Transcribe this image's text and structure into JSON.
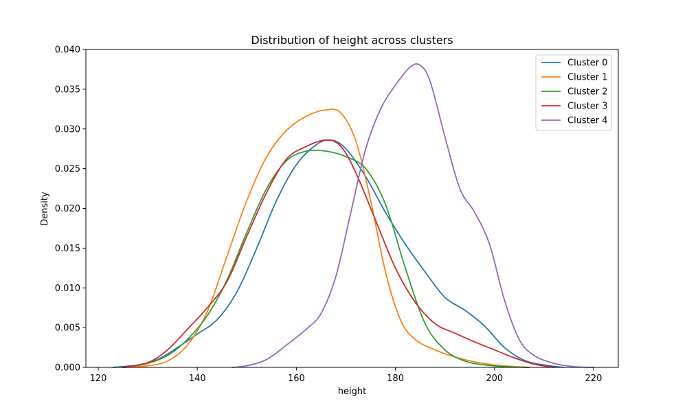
{
  "chart_data": {
    "type": "line",
    "title": "Distribution of height across clusters",
    "xlabel": "height",
    "ylabel": "Density",
    "xlim": [
      117.5,
      225
    ],
    "ylim": [
      0,
      0.04
    ],
    "xticks": [
      120,
      140,
      160,
      180,
      200,
      220
    ],
    "xtick_labels": [
      "120",
      "140",
      "160",
      "180",
      "200",
      "220"
    ],
    "yticks": [
      0,
      0.005,
      0.01,
      0.015,
      0.02,
      0.025,
      0.03,
      0.035,
      0.04
    ],
    "ytick_labels": [
      "0.000",
      "0.005",
      "0.010",
      "0.015",
      "0.020",
      "0.025",
      "0.030",
      "0.035",
      "0.040"
    ],
    "grid": false,
    "legend_position": "top-right",
    "series": [
      {
        "name": "Cluster 0",
        "color": "#1f77b4",
        "x": [
          123,
          128,
          132,
          136,
          140,
          144,
          148,
          152,
          156,
          160,
          164,
          167,
          170,
          174,
          178,
          182,
          186,
          190,
          194,
          198,
          202,
          206,
          210,
          214
        ],
        "y": [
          0.0,
          0.0003,
          0.001,
          0.0025,
          0.0042,
          0.006,
          0.0095,
          0.015,
          0.021,
          0.0255,
          0.028,
          0.0286,
          0.0275,
          0.024,
          0.0195,
          0.0155,
          0.012,
          0.0088,
          0.0072,
          0.0052,
          0.0025,
          0.0009,
          0.0003,
          0.0
        ]
      },
      {
        "name": "Cluster 1",
        "color": "#ff7f0e",
        "x": [
          125,
          130,
          134,
          138,
          142,
          146,
          150,
          154,
          158,
          162,
          166,
          169,
          172,
          175,
          178,
          181,
          184,
          188,
          192,
          196,
          200,
          204,
          207
        ],
        "y": [
          0.0,
          0.0002,
          0.0008,
          0.0028,
          0.007,
          0.014,
          0.021,
          0.0265,
          0.0298,
          0.0316,
          0.0324,
          0.032,
          0.0285,
          0.021,
          0.012,
          0.006,
          0.0035,
          0.0022,
          0.0013,
          0.0007,
          0.0003,
          0.0001,
          0.0
        ]
      },
      {
        "name": "Cluster 2",
        "color": "#2ca02c",
        "x": [
          125,
          130,
          134,
          138,
          142,
          146,
          150,
          154,
          158,
          162,
          166,
          170,
          174,
          178,
          182,
          186,
          190,
          194,
          198,
          202,
          207
        ],
        "y": [
          0.0,
          0.0005,
          0.0015,
          0.0035,
          0.0065,
          0.011,
          0.017,
          0.0225,
          0.026,
          0.0272,
          0.0272,
          0.0265,
          0.025,
          0.0205,
          0.0125,
          0.0055,
          0.0022,
          0.0008,
          0.0003,
          0.0001,
          0.0
        ]
      },
      {
        "name": "Cluster 3",
        "color": "#d62728",
        "x": [
          125,
          130,
          134,
          138,
          142,
          146,
          150,
          154,
          158,
          162,
          166,
          169,
          172,
          176,
          180,
          184,
          188,
          192,
          196,
          200,
          204,
          208,
          212
        ],
        "y": [
          0.0,
          0.0006,
          0.0022,
          0.0048,
          0.0075,
          0.0108,
          0.0165,
          0.022,
          0.0262,
          0.0278,
          0.0286,
          0.0278,
          0.0245,
          0.0185,
          0.0125,
          0.0082,
          0.0055,
          0.0043,
          0.0032,
          0.0022,
          0.0012,
          0.0004,
          0.0
        ]
      },
      {
        "name": "Cluster 4",
        "color": "#9467bd",
        "x": [
          147,
          150,
          154,
          158,
          162,
          165,
          168,
          171,
          174,
          177,
          180,
          183,
          185,
          187,
          190,
          193,
          196,
          199,
          202,
          205,
          208,
          212,
          216,
          220
        ],
        "y": [
          0.0,
          0.0002,
          0.001,
          0.0028,
          0.0048,
          0.0068,
          0.0115,
          0.0195,
          0.0275,
          0.0325,
          0.0355,
          0.0378,
          0.038,
          0.036,
          0.029,
          0.0225,
          0.0195,
          0.0155,
          0.0085,
          0.0035,
          0.0015,
          0.0005,
          0.0001,
          0.0
        ]
      }
    ]
  }
}
